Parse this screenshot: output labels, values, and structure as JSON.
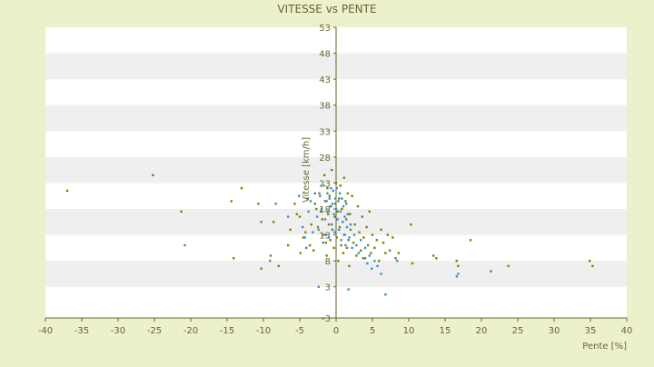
{
  "chart_data": {
    "type": "scatter",
    "title": "VITESSE vs PENTE",
    "xlabel": "Pente [%]",
    "ylabel": "Vitesse [km/h]",
    "xlim": [
      -40,
      40
    ],
    "ylim": [
      -3,
      53
    ],
    "x_ticks": [
      "-40",
      "-35",
      "-30",
      "-25",
      "-20",
      "-15",
      "-10",
      "-5",
      "0",
      "5",
      "10",
      "15",
      "20",
      "25",
      "30",
      "35",
      "40"
    ],
    "y_ticks": [
      "-3",
      "3",
      "8",
      "13",
      "18",
      "23",
      "28",
      "33",
      "38",
      "43",
      "48",
      "53"
    ],
    "grid": "horizontal bands",
    "colors": {
      "background": "#ecf0cb",
      "band_light": "#ffffff",
      "band_dark": "#efefef",
      "axis": "#666633",
      "text": "#666633",
      "series_a": "#808000",
      "series_b": "#3a8fd0"
    },
    "series": [
      {
        "color": "#808000",
        "points": [
          [
            -37,
            21.5
          ],
          [
            -25.2,
            24.5
          ],
          [
            -21.3,
            17.5
          ],
          [
            -20.8,
            11
          ],
          [
            -14.4,
            19.5
          ],
          [
            -14.1,
            8.5
          ],
          [
            -13,
            22
          ],
          [
            -10.7,
            19
          ],
          [
            -10.3,
            6.5
          ],
          [
            -9,
            9
          ],
          [
            -8.6,
            15.5
          ],
          [
            -7.9,
            7
          ],
          [
            -6.6,
            11
          ],
          [
            -6.3,
            14
          ],
          [
            -5.7,
            19
          ],
          [
            -5.4,
            17
          ],
          [
            -5,
            16.5
          ],
          [
            -4.9,
            9.5
          ],
          [
            -4.5,
            12.5
          ],
          [
            -4.2,
            13.5
          ],
          [
            -3.9,
            20
          ],
          [
            -3.6,
            11
          ],
          [
            -3.4,
            15
          ],
          [
            -3.1,
            10
          ],
          [
            -2.9,
            19
          ],
          [
            -2.7,
            18
          ],
          [
            -2.5,
            14.5
          ],
          [
            -2.3,
            21
          ],
          [
            -2.1,
            17.5
          ],
          [
            -1.9,
            16
          ],
          [
            -1.7,
            13
          ],
          [
            -1.6,
            24.5
          ],
          [
            -1.5,
            19.5
          ],
          [
            -1.4,
            11.5
          ],
          [
            -1.3,
            9
          ],
          [
            -1.2,
            22
          ],
          [
            -1.1,
            17
          ],
          [
            -1,
            15
          ],
          [
            -0.9,
            20.5
          ],
          [
            -0.8,
            12
          ],
          [
            -0.7,
            18.5
          ],
          [
            -0.6,
            25.5
          ],
          [
            -0.5,
            14
          ],
          [
            -0.4,
            21.5
          ],
          [
            -0.3,
            10.5
          ],
          [
            -0.2,
            16.5
          ],
          [
            -0.1,
            19
          ],
          [
            0,
            23
          ],
          [
            0.1,
            12.5
          ],
          [
            0.2,
            17.5
          ],
          [
            0.3,
            8
          ],
          [
            0.4,
            20
          ],
          [
            0.5,
            14.5
          ],
          [
            0.6,
            22.5
          ],
          [
            0.7,
            11
          ],
          [
            0.8,
            18
          ],
          [
            0.9,
            15.5
          ],
          [
            1,
            9.5
          ],
          [
            1.1,
            24
          ],
          [
            1.2,
            13
          ],
          [
            1.3,
            19.5
          ],
          [
            1.4,
            16
          ],
          [
            1.5,
            10.5
          ],
          [
            1.6,
            21
          ],
          [
            1.7,
            12
          ],
          [
            1.8,
            7
          ],
          [
            1.9,
            17
          ],
          [
            2,
            14
          ],
          [
            2.2,
            20.5
          ],
          [
            2.4,
            11.5
          ],
          [
            2.6,
            15
          ],
          [
            2.8,
            9
          ],
          [
            3,
            18.5
          ],
          [
            3.2,
            13.5
          ],
          [
            3.4,
            10
          ],
          [
            3.6,
            16.5
          ],
          [
            3.8,
            12.5
          ],
          [
            4,
            8.5
          ],
          [
            4.2,
            14.5
          ],
          [
            4.4,
            11
          ],
          [
            4.6,
            17.5
          ],
          [
            4.8,
            9.5
          ],
          [
            5,
            13
          ],
          [
            5.3,
            10.5
          ],
          [
            5.6,
            12
          ],
          [
            5.9,
            8
          ],
          [
            6.2,
            14
          ],
          [
            6.5,
            11.5
          ],
          [
            6.8,
            9.5
          ],
          [
            7.1,
            13
          ],
          [
            7.4,
            10
          ],
          [
            7.8,
            12.5
          ],
          [
            8.2,
            8.5
          ],
          [
            8.6,
            9.5
          ],
          [
            10.3,
            15
          ],
          [
            10.5,
            7.5
          ],
          [
            13.4,
            9
          ],
          [
            13.8,
            8.5
          ],
          [
            16.6,
            8
          ],
          [
            16.8,
            7
          ],
          [
            18.5,
            12
          ],
          [
            21.3,
            6
          ],
          [
            23.7,
            7
          ],
          [
            34.9,
            8
          ],
          [
            35.3,
            7
          ]
        ]
      },
      {
        "color": "#3a8fd0",
        "points": [
          [
            -10.3,
            15.5
          ],
          [
            -9.1,
            8
          ],
          [
            -8.3,
            19
          ],
          [
            -6.6,
            16.5
          ],
          [
            -5.1,
            20.5
          ],
          [
            -4.6,
            14.5
          ],
          [
            -4.3,
            12.5
          ],
          [
            -4.1,
            10.5
          ],
          [
            -3.8,
            17.5
          ],
          [
            -3.5,
            19.5
          ],
          [
            -3.2,
            13.5
          ],
          [
            -2.9,
            21
          ],
          [
            -2.6,
            16.5
          ],
          [
            -2.4,
            14
          ],
          [
            -2.2,
            20.5
          ],
          [
            -2,
            18
          ],
          [
            -1.8,
            11.5
          ],
          [
            -1.7,
            22.5
          ],
          [
            -1.5,
            16
          ],
          [
            -1.4,
            13
          ],
          [
            -1.3,
            19.5
          ],
          [
            -1.2,
            21
          ],
          [
            -1.1,
            17.5
          ],
          [
            -1,
            12.5
          ],
          [
            -0.9,
            20
          ],
          [
            -0.8,
            18.5
          ],
          [
            -0.7,
            22
          ],
          [
            -0.6,
            15
          ],
          [
            -0.5,
            19
          ],
          [
            -0.4,
            21.5
          ],
          [
            -0.3,
            17
          ],
          [
            -0.2,
            13.5
          ],
          [
            -0.1,
            20
          ],
          [
            0,
            18
          ],
          [
            0.1,
            22
          ],
          [
            0.2,
            16
          ],
          [
            0.3,
            19.5
          ],
          [
            0.4,
            14
          ],
          [
            0.5,
            21
          ],
          [
            0.6,
            17.5
          ],
          [
            0.7,
            12
          ],
          [
            0.8,
            20
          ],
          [
            0.9,
            15.5
          ],
          [
            1,
            18.5
          ],
          [
            1.1,
            13
          ],
          [
            1.2,
            16.5
          ],
          [
            1.3,
            11
          ],
          [
            1.4,
            19
          ],
          [
            1.5,
            14.5
          ],
          [
            1.6,
            17
          ],
          [
            1.8,
            12.5
          ],
          [
            2,
            15
          ],
          [
            2.2,
            10.5
          ],
          [
            2.5,
            13
          ],
          [
            2.8,
            11
          ],
          [
            3.1,
            9.5
          ],
          [
            3.4,
            12
          ],
          [
            3.7,
            8.5
          ],
          [
            4,
            10.5
          ],
          [
            4.3,
            7.5
          ],
          [
            4.6,
            9
          ],
          [
            4.9,
            6.5
          ],
          [
            5.3,
            8
          ],
          [
            5.7,
            7
          ],
          [
            6.2,
            5.5
          ],
          [
            6.8,
            1.5
          ],
          [
            8.4,
            8
          ],
          [
            1.7,
            2.5
          ],
          [
            -2.4,
            3
          ],
          [
            16.6,
            5
          ],
          [
            16.8,
            5.5
          ]
        ]
      }
    ]
  }
}
